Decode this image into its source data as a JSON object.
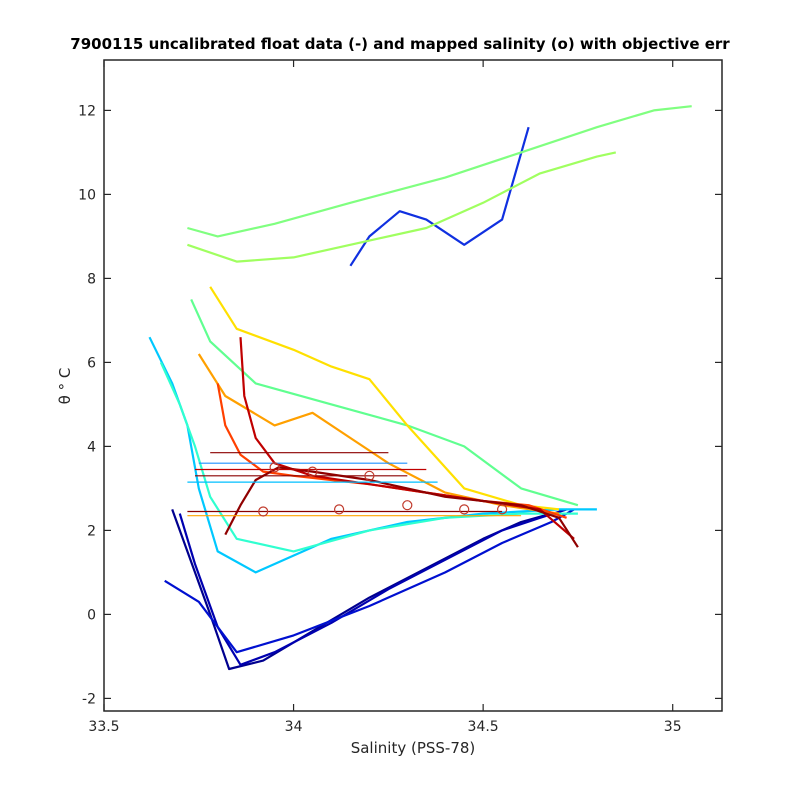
{
  "chart_data": {
    "type": "line",
    "title": "7900115 uncalibrated float data (-) and mapped salinity (o) with objective err",
    "xlabel": "Salinity (PSS-78)",
    "ylabel": "θ ° C",
    "xlim": [
      33.5,
      35.13
    ],
    "ylim": [
      -2.3,
      13.2
    ],
    "xticks": [
      33.5,
      34,
      34.5,
      35
    ],
    "xtick_labels": [
      "33.5",
      "34",
      "34.5",
      "35"
    ],
    "yticks": [
      -2,
      0,
      2,
      4,
      6,
      8,
      10,
      12
    ],
    "ytick_labels": [
      "-2",
      "0",
      "2",
      "4",
      "6",
      "8",
      "10",
      "12"
    ],
    "grid": false,
    "colormap": "jet",
    "series": [
      {
        "color": "#00008f",
        "x": [
          33.68,
          33.72,
          33.78,
          33.83,
          33.92,
          34.05,
          34.2,
          34.35,
          34.5,
          34.6,
          34.68
        ],
        "y": [
          2.5,
          1.5,
          0.0,
          -1.3,
          -1.1,
          -0.4,
          0.4,
          1.1,
          1.8,
          2.2,
          2.4
        ]
      },
      {
        "color": "#0000b0",
        "x": [
          33.7,
          33.74,
          33.8,
          33.86,
          33.95,
          34.1,
          34.25,
          34.4,
          34.55,
          34.65,
          34.72
        ],
        "y": [
          2.4,
          1.2,
          -0.3,
          -1.2,
          -0.9,
          -0.2,
          0.6,
          1.3,
          2.0,
          2.3,
          2.5
        ]
      },
      {
        "color": "#0010d0",
        "x": [
          33.66,
          33.75,
          33.85,
          34.0,
          34.2,
          34.4,
          34.55,
          34.68,
          34.74
        ],
        "y": [
          0.8,
          0.3,
          -0.9,
          -0.5,
          0.2,
          1.0,
          1.7,
          2.2,
          2.5
        ]
      },
      {
        "color": "#1030e0",
        "x": [
          34.15,
          34.2,
          34.28,
          34.35,
          34.45,
          34.55,
          34.62
        ],
        "y": [
          8.3,
          9.0,
          9.6,
          9.4,
          8.8,
          9.4,
          11.6
        ]
      },
      {
        "color": "#00c8ff",
        "x": [
          33.62,
          33.68,
          33.72,
          33.75,
          33.8,
          33.9,
          34.1,
          34.3,
          34.5,
          34.7,
          34.8
        ],
        "y": [
          6.6,
          5.5,
          4.5,
          3.0,
          1.5,
          1.0,
          1.8,
          2.2,
          2.4,
          2.5,
          2.5
        ]
      },
      {
        "color": "#30ffd0",
        "x": [
          33.65,
          33.7,
          33.74,
          33.78,
          33.85,
          34.0,
          34.2,
          34.4,
          34.6,
          34.75
        ],
        "y": [
          6.0,
          5.0,
          4.0,
          2.8,
          1.8,
          1.5,
          2.0,
          2.3,
          2.4,
          2.4
        ]
      },
      {
        "color": "#80ff80",
        "x": [
          33.72,
          33.8,
          33.95,
          34.15,
          34.4,
          34.6,
          34.8,
          34.95,
          35.05
        ],
        "y": [
          9.2,
          9.0,
          9.3,
          9.8,
          10.4,
          11.0,
          11.6,
          12.0,
          12.1
        ]
      },
      {
        "color": "#a0ff60",
        "x": [
          33.72,
          33.85,
          34.0,
          34.2,
          34.35,
          34.5,
          34.65,
          34.8,
          34.85
        ],
        "y": [
          8.8,
          8.4,
          8.5,
          8.9,
          9.2,
          9.8,
          10.5,
          10.9,
          11.0
        ]
      },
      {
        "color": "#60ff90",
        "x": [
          33.73,
          33.78,
          33.9,
          34.1,
          34.3,
          34.45,
          34.6,
          34.75
        ],
        "y": [
          7.5,
          6.5,
          5.5,
          5.0,
          4.5,
          4.0,
          3.0,
          2.6
        ]
      },
      {
        "color": "#ffe000",
        "x": [
          33.78,
          33.85,
          34.0,
          34.1,
          34.2,
          34.3,
          34.45,
          34.6,
          34.7
        ],
        "y": [
          7.8,
          6.8,
          6.3,
          5.9,
          5.6,
          4.5,
          3.0,
          2.6,
          2.5
        ]
      },
      {
        "color": "#ffa000",
        "x": [
          33.75,
          33.82,
          33.95,
          34.05,
          34.15,
          34.25,
          34.4,
          34.55,
          34.7
        ],
        "y": [
          6.2,
          5.2,
          4.5,
          4.8,
          4.2,
          3.6,
          2.9,
          2.6,
          2.4
        ]
      },
      {
        "color": "#ff4000",
        "x": [
          33.8,
          33.82,
          33.86,
          33.92,
          34.0,
          34.1,
          34.2,
          34.35,
          34.5,
          34.62,
          34.72
        ],
        "y": [
          5.5,
          4.5,
          3.8,
          3.4,
          3.3,
          3.2,
          3.1,
          2.9,
          2.7,
          2.6,
          2.3
        ]
      },
      {
        "color": "#c00000",
        "x": [
          33.86,
          33.87,
          33.9,
          33.95,
          34.05,
          34.2,
          34.35,
          34.5,
          34.65,
          34.74
        ],
        "y": [
          6.6,
          5.2,
          4.2,
          3.6,
          3.3,
          3.1,
          2.9,
          2.7,
          2.5,
          1.8
        ]
      },
      {
        "color": "#900000",
        "x": [
          33.82,
          33.86,
          33.9,
          33.96,
          34.05,
          34.2,
          34.4,
          34.6,
          34.7,
          34.75
        ],
        "y": [
          1.9,
          2.6,
          3.2,
          3.5,
          3.4,
          3.2,
          2.8,
          2.6,
          2.3,
          1.6
        ]
      }
    ],
    "mapped_markers": [
      {
        "x": 33.95,
        "y": 3.5
      },
      {
        "x": 34.05,
        "y": 3.4
      },
      {
        "x": 34.2,
        "y": 3.3
      },
      {
        "x": 34.3,
        "y": 2.6
      },
      {
        "x": 34.45,
        "y": 2.5
      },
      {
        "x": 34.55,
        "y": 2.5
      },
      {
        "x": 33.92,
        "y": 2.45
      },
      {
        "x": 34.12,
        "y": 2.5
      }
    ],
    "objective_error_bars": [
      {
        "y": 3.85,
        "x0": 33.78,
        "x1": 34.25,
        "color": "#8b0000"
      },
      {
        "y": 3.6,
        "x0": 33.75,
        "x1": 34.3,
        "color": "#1e90ff"
      },
      {
        "y": 3.45,
        "x0": 33.74,
        "x1": 34.35,
        "color": "#c00000"
      },
      {
        "y": 3.3,
        "x0": 33.74,
        "x1": 34.3,
        "color": "#8b0000"
      },
      {
        "y": 3.15,
        "x0": 33.72,
        "x1": 34.38,
        "color": "#00bfff"
      },
      {
        "y": 2.45,
        "x0": 33.72,
        "x1": 34.55,
        "color": "#8b0000"
      },
      {
        "y": 2.35,
        "x0": 33.72,
        "x1": 34.6,
        "color": "#ffa500"
      }
    ]
  }
}
